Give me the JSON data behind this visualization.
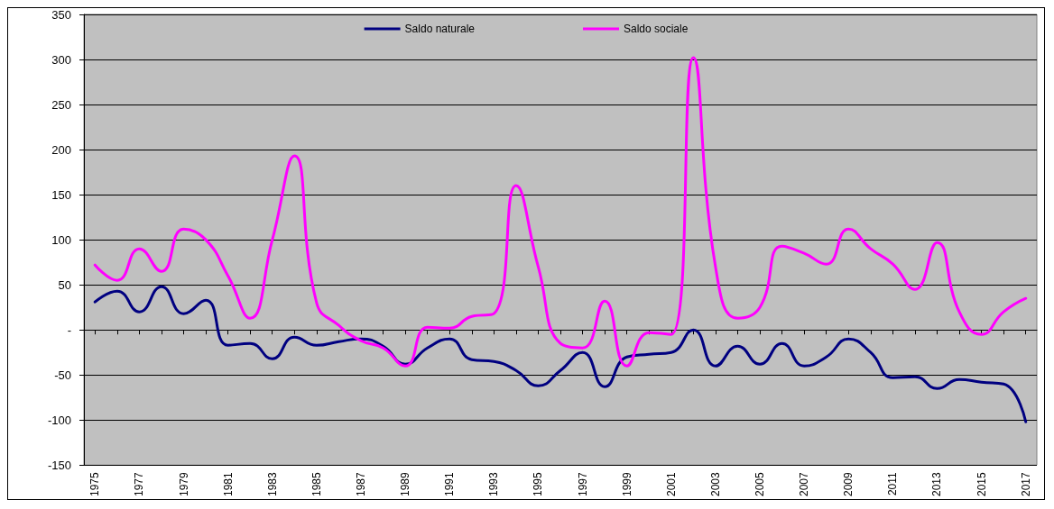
{
  "chart_data": {
    "type": "line",
    "categories": [
      "1975",
      null,
      "1977",
      null,
      "1979",
      null,
      "1981",
      null,
      "1983",
      null,
      "1985",
      null,
      "1987",
      null,
      "1989",
      null,
      "1991",
      null,
      "1993",
      null,
      "1995",
      null,
      "1997",
      null,
      "1999",
      null,
      "2001",
      null,
      "2003",
      null,
      "2005",
      null,
      "2007",
      null,
      "2009",
      null,
      "2011",
      null,
      "2013",
      null,
      "2015",
      null,
      "2017"
    ],
    "series": [
      {
        "name": "Saldo naturale",
        "color": "#000080",
        "values": [
          31,
          43,
          20,
          48,
          18,
          33,
          -17,
          -15,
          -32,
          -8,
          -17,
          -13,
          -10,
          -18,
          -38,
          -20,
          -10,
          -33,
          -35,
          -45,
          -62,
          -45,
          -25,
          -63,
          -30,
          -27,
          -25,
          0,
          -40,
          -18,
          -38,
          -15,
          -40,
          -30,
          -10,
          -25,
          -53,
          -52,
          -65,
          -55,
          -58,
          -60,
          -102
        ]
      },
      {
        "name": "Saldo sociale",
        "color": "#ff00ff",
        "values": [
          72,
          55,
          90,
          65,
          112,
          100,
          60,
          13,
          100,
          193,
          30,
          5,
          -12,
          -20,
          -40,
          3,
          2,
          15,
          18,
          160,
          70,
          -15,
          -20,
          32,
          -40,
          -3,
          -5,
          302,
          70,
          13,
          25,
          93,
          85,
          73,
          112,
          90,
          73,
          45,
          97,
          20,
          -5,
          20,
          35
        ]
      }
    ],
    "ylim": [
      -150,
      350
    ],
    "yticks": [
      -150,
      -100,
      -50,
      {
        "value": 0,
        "label": "-"
      },
      50,
      100,
      150,
      200,
      250,
      300,
      350
    ],
    "grid": "y",
    "legend": "top",
    "marker": "none",
    "line_style": "solid"
  }
}
